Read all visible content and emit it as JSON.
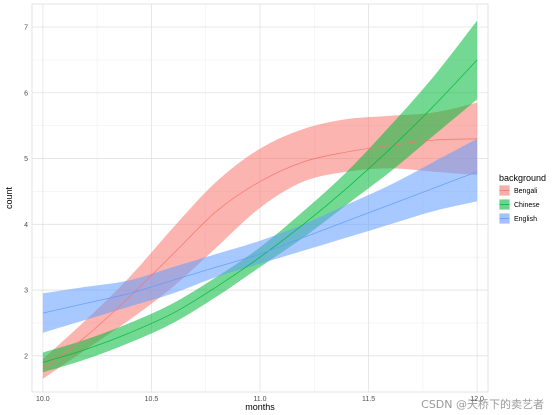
{
  "chart_data": {
    "type": "line",
    "xlabel": "months",
    "ylabel": "count",
    "xlim": [
      9.95,
      12.05
    ],
    "ylim": [
      1.45,
      7.35
    ],
    "x_ticks": [
      10.0,
      10.5,
      11.0,
      11.5,
      12.0
    ],
    "x_tick_labels": [
      "10.0",
      "10.5",
      "11.0",
      "11.5",
      "12.0"
    ],
    "y_ticks": [
      2,
      3,
      4,
      5,
      6,
      7
    ],
    "y_tick_labels": [
      "2",
      "3",
      "4",
      "5",
      "6",
      "7"
    ],
    "grid": true,
    "legend": {
      "title": "background",
      "position": "right"
    },
    "x": [
      10.0,
      10.2,
      10.4,
      10.6,
      10.8,
      11.0,
      11.2,
      11.4,
      11.6,
      11.8,
      12.0
    ],
    "series": [
      {
        "name": "Bengali",
        "color": "#F8766D",
        "fit": [
          1.8,
          2.3,
          2.9,
          3.55,
          4.2,
          4.65,
          4.95,
          5.1,
          5.2,
          5.28,
          5.3
        ],
        "lower": [
          1.65,
          2.1,
          2.55,
          3.05,
          3.65,
          4.25,
          4.65,
          4.8,
          4.85,
          4.8,
          4.75
        ],
        "upper": [
          1.95,
          2.55,
          3.2,
          3.95,
          4.65,
          5.15,
          5.45,
          5.6,
          5.65,
          5.7,
          5.85
        ]
      },
      {
        "name": "Chinese",
        "color": "#00BA38",
        "fit": [
          1.9,
          2.1,
          2.35,
          2.65,
          3.05,
          3.5,
          4.0,
          4.55,
          5.15,
          5.8,
          6.5
        ],
        "lower": [
          1.75,
          1.95,
          2.2,
          2.5,
          2.9,
          3.35,
          3.8,
          4.3,
          4.8,
          5.35,
          5.9
        ],
        "upper": [
          2.05,
          2.25,
          2.5,
          2.8,
          3.2,
          3.65,
          4.2,
          4.8,
          5.5,
          6.25,
          7.1
        ]
      },
      {
        "name": "English",
        "color": "#619CFF",
        "fit": [
          2.65,
          2.8,
          2.95,
          3.15,
          3.35,
          3.55,
          3.8,
          4.05,
          4.3,
          4.55,
          4.8
        ],
        "lower": [
          2.35,
          2.55,
          2.75,
          2.95,
          3.2,
          3.4,
          3.6,
          3.8,
          4.0,
          4.2,
          4.35
        ],
        "upper": [
          2.95,
          3.05,
          3.15,
          3.35,
          3.55,
          3.75,
          4.0,
          4.3,
          4.6,
          4.95,
          5.3
        ]
      }
    ]
  },
  "watermark": "CSDN @天桥下的卖艺者"
}
